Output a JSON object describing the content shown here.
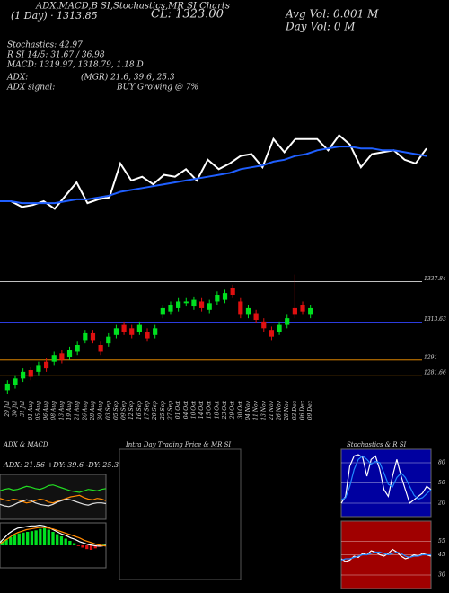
{
  "chart_data": [
    {
      "type": "line",
      "annotations": [
        "ADX,MACD,B SI,Stochastics,MR SI Charts",
        "(1 Day) · 1313.85",
        "CL: 1323.00",
        "Avg Vol: 0.001 M",
        "Day Vol: 0 M",
        "Stochastics: 42.97",
        "R SI 14/5: 31.67 / 36.98",
        "MACD: 1319.97, 1318.79, 1.18 D",
        "ADX:",
        "(MGR) 21.6, 39.6, 25.3",
        "ADX signal:",
        "BUY Growing @ 7%"
      ],
      "ylim": [
        1290,
        1340
      ],
      "series": [
        {
          "color": "#ffffff",
          "values": [
            1300,
            1300,
            1297,
            1298,
            1300,
            1296,
            1303,
            1310,
            1299,
            1301,
            1302,
            1320,
            1311,
            1313,
            1309,
            1314,
            1313,
            1317,
            1311,
            1322,
            1317,
            1320,
            1324,
            1325,
            1318,
            1333,
            1326,
            1333,
            1333,
            1333,
            1327,
            1335,
            1330,
            1318,
            1325,
            1326,
            1327,
            1322,
            1320,
            1328
          ]
        },
        {
          "color": "#1f5fff",
          "values": [
            1300,
            1300,
            1299,
            1299,
            1299,
            1299,
            1300,
            1301,
            1301,
            1302,
            1303,
            1305,
            1306,
            1307,
            1308,
            1309,
            1310,
            1311,
            1312,
            1313,
            1314,
            1315,
            1317,
            1318,
            1319,
            1321,
            1322,
            1324,
            1325,
            1327,
            1328,
            1329,
            1329,
            1328,
            1328,
            1327,
            1327,
            1326,
            1325,
            1324
          ]
        }
      ]
    },
    {
      "type": "candlestick",
      "categories": [
        "29 Jul",
        "30 Jul",
        "31 Jul",
        "01 Aug",
        "05 Aug",
        "06 Aug",
        "08 Aug",
        "13 Aug",
        "19 Aug",
        "21 Aug",
        "26 Aug",
        "28 Aug",
        "30 Aug",
        "03 Sep",
        "05 Sep",
        "09 Sep",
        "12 Sep",
        "16 Sep",
        "17 Sep",
        "20 Sep",
        "25 Sep",
        "27 Sep",
        "01 Oct",
        "04 Oct",
        "10 Oct",
        "14 Oct",
        "15 Oct",
        "18 Oct",
        "23 Oct",
        "29 Oct",
        "30 Oct",
        "04 Nov",
        "11 Nov",
        "13 Nov",
        "21 Nov",
        "26 Nov",
        "28 Nov",
        "03 Dec",
        "06 Dec",
        "09 Dec"
      ],
      "open": [
        1273,
        1276,
        1280,
        1285,
        1284,
        1290,
        1290,
        1295,
        1293,
        1296,
        1303,
        1307,
        1300,
        1301,
        1306,
        1312,
        1310,
        1308,
        1308,
        1306,
        1318,
        1320,
        1322,
        1325,
        1323,
        1326,
        1321,
        1326,
        1327,
        1334,
        1326,
        1318,
        1319,
        1314,
        1309,
        1308,
        1312,
        1322,
        1324,
        1318
      ],
      "high": [
        1279,
        1282,
        1286,
        1287,
        1290,
        1292,
        1296,
        1297,
        1299,
        1302,
        1309,
        1309,
        1302,
        1307,
        1312,
        1314,
        1312,
        1314,
        1310,
        1312,
        1324,
        1326,
        1328,
        1328,
        1329,
        1328,
        1327,
        1332,
        1333,
        1336,
        1328,
        1324,
        1321,
        1316,
        1311,
        1314,
        1318,
        1342,
        1326,
        1324
      ],
      "low": [
        1271,
        1274,
        1278,
        1279,
        1282,
        1284,
        1288,
        1289,
        1291,
        1294,
        1301,
        1301,
        1294,
        1299,
        1304,
        1306,
        1304,
        1306,
        1302,
        1304,
        1316,
        1318,
        1320,
        1323,
        1321,
        1320,
        1319,
        1324,
        1325,
        1328,
        1316,
        1316,
        1313,
        1308,
        1303,
        1306,
        1310,
        1316,
        1318,
        1316
      ],
      "close": [
        1277,
        1280,
        1284,
        1281,
        1288,
        1286,
        1294,
        1291,
        1297,
        1300,
        1307,
        1303,
        1296,
        1305,
        1310,
        1308,
        1306,
        1312,
        1304,
        1310,
        1322,
        1324,
        1326,
        1326,
        1327,
        1322,
        1325,
        1330,
        1331,
        1330,
        1318,
        1322,
        1315,
        1310,
        1305,
        1312,
        1316,
        1318,
        1320,
        1322
      ],
      "up_color": "#00e020",
      "down_color": "#e01010",
      "ylim": [
        1270,
        1345
      ],
      "yticks": [
        1337.84,
        1313.63,
        1291,
        1281.66
      ]
    },
    {
      "type": "line",
      "title": "ADX & MACD",
      "subtitle": "ADX: 21.56 +DY: 39.6 -DY: 25.35",
      "background": "#111111",
      "ylim": [
        0,
        60
      ],
      "series": [
        {
          "color": "#22dd22",
          "values": [
            38,
            40,
            41,
            39,
            40,
            42,
            44,
            43,
            41,
            40,
            42,
            45,
            46,
            44,
            42,
            40,
            38,
            37,
            36,
            38,
            40,
            39,
            38,
            40,
            41
          ]
        },
        {
          "color": "#ff8800",
          "values": [
            28,
            26,
            25,
            27,
            26,
            24,
            22,
            23,
            25,
            27,
            26,
            23,
            22,
            24,
            26,
            28,
            30,
            31,
            32,
            29,
            27,
            26,
            28,
            27,
            25
          ]
        },
        {
          "color": "#dddddd",
          "values": [
            20,
            18,
            17,
            19,
            22,
            24,
            26,
            25,
            22,
            20,
            19,
            18,
            20,
            23,
            25,
            27,
            26,
            24,
            22,
            20,
            19,
            21,
            22,
            22,
            21
          ]
        }
      ]
    },
    {
      "type": "macd",
      "background": "#000000",
      "ylim": [
        -3,
        3
      ],
      "values": [
        0.5,
        0.8,
        1.1,
        1.4,
        1.6,
        1.7,
        1.8,
        1.9,
        2.0,
        2.2,
        2.3,
        2.1,
        1.8,
        1.5,
        1.2,
        0.9,
        0.6,
        0.3,
        -0.1,
        -0.3,
        -0.5,
        -0.6,
        -0.4,
        -0.2,
        0.1
      ],
      "up_color": "#00e020",
      "down_color": "#e01010",
      "series": [
        {
          "color": "#ffffff",
          "values": [
            0.4,
            1.0,
            1.6,
            2.0,
            2.3,
            2.4,
            2.5,
            2.6,
            2.6,
            2.7,
            2.6,
            2.4,
            2.1,
            1.8,
            1.5,
            1.3,
            1.0,
            0.8,
            0.5,
            0.3,
            0.1,
            0.0,
            -0.1,
            -0.1,
            0.0
          ]
        },
        {
          "color": "#ff8800",
          "values": [
            0.2,
            0.6,
            1.0,
            1.4,
            1.7,
            1.9,
            2.1,
            2.2,
            2.3,
            2.4,
            2.4,
            2.3,
            2.2,
            2.0,
            1.8,
            1.6,
            1.4,
            1.2,
            1.0,
            0.7,
            0.5,
            0.3,
            0.1,
            0.0,
            -0.1
          ]
        }
      ]
    },
    {
      "type": "line",
      "title": "Intra Day Trading Price & MR SI",
      "background": "#000000",
      "series": []
    },
    {
      "type": "line",
      "title": "Stochastics & R SI",
      "background": "#0000a0",
      "ylim": [
        0,
        100
      ],
      "yticks": [
        80,
        50,
        20
      ],
      "series": [
        {
          "color": "#ffffff",
          "values": [
            20,
            30,
            75,
            90,
            92,
            88,
            60,
            85,
            90,
            70,
            40,
            30,
            60,
            85,
            60,
            40,
            20,
            25,
            30,
            35,
            45,
            40
          ]
        },
        {
          "color": "#2288ff",
          "values": [
            25,
            28,
            45,
            70,
            85,
            90,
            85,
            78,
            82,
            80,
            65,
            48,
            44,
            58,
            65,
            58,
            45,
            32,
            26,
            28,
            34,
            40
          ]
        }
      ]
    },
    {
      "type": "line",
      "background": "#a00000",
      "ylim": [
        20,
        70
      ],
      "yticks": [
        55,
        45,
        30
      ],
      "series": [
        {
          "color": "#ffffff",
          "values": [
            42,
            40,
            41,
            44,
            43,
            46,
            45,
            48,
            47,
            45,
            44,
            46,
            49,
            47,
            44,
            42,
            43,
            45,
            44,
            46,
            45,
            44
          ]
        },
        {
          "color": "#2288ff",
          "values": [
            41,
            42,
            42,
            43,
            44,
            45,
            45,
            46,
            47,
            47,
            46,
            45,
            46,
            47,
            46,
            44,
            43,
            44,
            44,
            45,
            45,
            45
          ]
        }
      ]
    }
  ]
}
